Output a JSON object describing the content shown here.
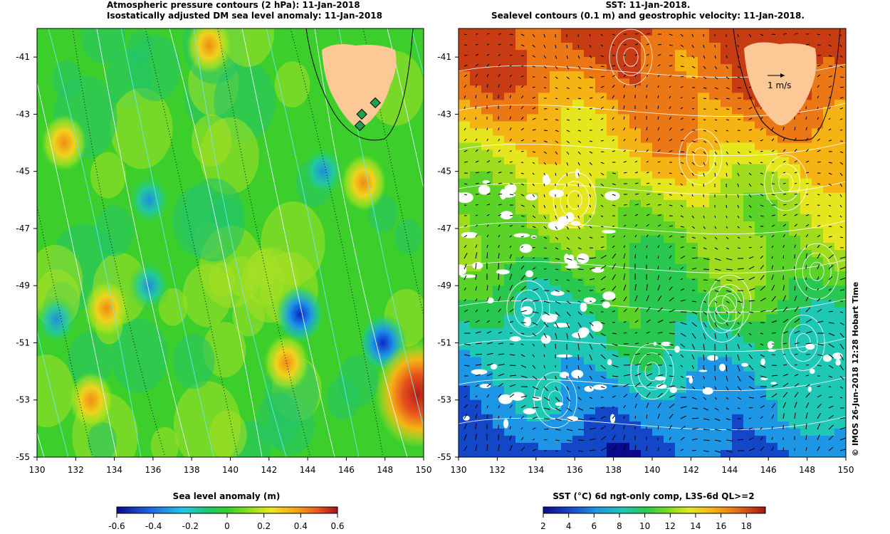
{
  "left_panel": {
    "title_line1": "Atmospheric pressure contours (2 hPa): 11-Jan-2018",
    "title_line2": "Isostatically adjusted DM sea level anomaly: 11-Jan-2018",
    "colorbar_label": "Sea level anomaly (m)",
    "colorbar_ticks": [
      "-0.6",
      "-0.4",
      "-0.2",
      "0",
      "0.2",
      "0.4",
      "0.6"
    ]
  },
  "right_panel": {
    "title_line1": "SST: 11-Jan-2018.",
    "title_line2": "Sealevel contours (0.1 m) and geostrophic velocity: 11-Jan-2018.",
    "colorbar_label": "SST (°C) 6d ngt-only comp, L3S-6d QL>=2",
    "colorbar_ticks": [
      "2",
      "4",
      "6",
      "8",
      "10",
      "12",
      "14",
      "16",
      "18"
    ],
    "vector_scale_label": "1 m/s"
  },
  "credit": "© IMOS 26-Jun-2018 12:28 Hobart Time",
  "colors": {
    "land": "#fbc896",
    "tide_gauge": "#1fa04a"
  },
  "chart_data": [
    {
      "type": "heatmap",
      "title": "Atmospheric pressure contours (2 hPa): 11-Jan-2018 / Isostatically adjusted DM sea level anomaly: 11-Jan-2018",
      "xlabel": "",
      "ylabel": "",
      "x_ticks": [
        "130",
        "132",
        "134",
        "136",
        "138",
        "140",
        "142",
        "144",
        "146",
        "148",
        "150"
      ],
      "y_ticks": [
        "-41",
        "-43",
        "-45",
        "-47",
        "-49",
        "-51",
        "-53",
        "-55"
      ],
      "xlim": [
        130,
        150
      ],
      "ylim": [
        -55,
        -40
      ],
      "colorbar": {
        "label": "Sea level anomaly (m)",
        "range": [
          -0.6,
          0.6
        ]
      },
      "features": {
        "lows": [
          {
            "lon": 143.6,
            "lat": -50.0,
            "value": -0.55
          },
          {
            "lon": 147.9,
            "lat": -51.0,
            "value": -0.55
          },
          {
            "lon": 131.0,
            "lat": -50.2,
            "value": -0.35
          },
          {
            "lon": 135.8,
            "lat": -46.0,
            "value": -0.3
          },
          {
            "lon": 144.8,
            "lat": -45.0,
            "value": -0.35
          },
          {
            "lon": 135.8,
            "lat": -49.0,
            "value": -0.3
          }
        ],
        "highs": [
          {
            "lon": 133.6,
            "lat": -49.8,
            "value": 0.4
          },
          {
            "lon": 132.8,
            "lat": -53.0,
            "value": 0.4
          },
          {
            "lon": 142.9,
            "lat": -51.7,
            "value": 0.4
          },
          {
            "lon": 146.9,
            "lat": -45.4,
            "value": 0.4
          },
          {
            "lon": 149.7,
            "lat": -52.8,
            "value": 0.6
          },
          {
            "lon": 138.9,
            "lat": -40.6,
            "value": 0.35
          },
          {
            "lon": 131.4,
            "lat": -44.0,
            "value": 0.3
          }
        ],
        "tide_gauges": [
          {
            "lon": 147.5,
            "lat": -42.6
          },
          {
            "lon": 146.8,
            "lat": -43.0
          },
          {
            "lon": 146.7,
            "lat": -43.4
          }
        ]
      }
    },
    {
      "type": "heatmap",
      "title": "SST: 11-Jan-2018. / Sealevel contours (0.1 m) and geostrophic velocity: 11-Jan-2018.",
      "xlabel": "",
      "ylabel": "",
      "x_ticks": [
        "130",
        "132",
        "134",
        "136",
        "138",
        "140",
        "142",
        "144",
        "146",
        "148",
        "150"
      ],
      "y_ticks": [
        "-41",
        "-43",
        "-45",
        "-47",
        "-49",
        "-51",
        "-53",
        "-55"
      ],
      "xlim": [
        130,
        150
      ],
      "ylim": [
        -55,
        -40
      ],
      "colorbar": {
        "label": "SST (°C) 6d ngt-only comp, L3S-6d QL>=2",
        "range": [
          2,
          19.5
        ]
      },
      "sst_profile_by_lat": [
        {
          "lat": -40.0,
          "sst": 17.5
        },
        {
          "lat": -42.0,
          "sst": 16.5
        },
        {
          "lat": -44.0,
          "sst": 14.5
        },
        {
          "lat": -46.0,
          "sst": 12.0
        },
        {
          "lat": -48.0,
          "sst": 10.5
        },
        {
          "lat": -50.0,
          "sst": 8.5
        },
        {
          "lat": -52.0,
          "sst": 6.5
        },
        {
          "lat": -54.0,
          "sst": 4.5
        },
        {
          "lat": -55.0,
          "sst": 3.0
        }
      ],
      "vector_scale": "1 m/s"
    }
  ]
}
